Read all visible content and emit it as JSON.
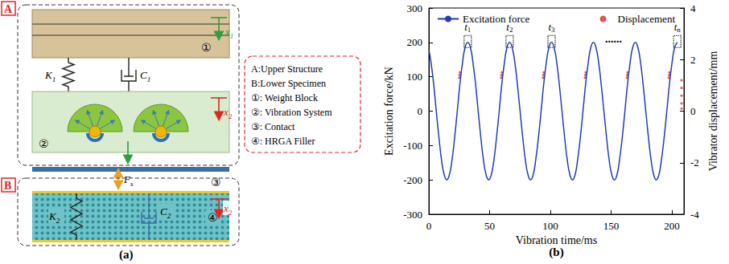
{
  "diagram": {
    "panel_label": "(a)",
    "group_labels": [
      "A",
      "B"
    ],
    "key": [
      "A:Upper Structure",
      "B:Lower Specimen",
      "①: Weight Block",
      "②: Vibration System",
      "③: Contact",
      "④: HRGA  Filler"
    ],
    "part_labels": [
      "①",
      "②",
      "③",
      "④"
    ],
    "upper_displacement": "x1",
    "lower_displacement": "x2",
    "spring_labels": [
      "K1",
      "K2"
    ],
    "damper_labels": [
      "C1",
      "C2"
    ],
    "force_label": "Fs"
  },
  "chart_data": {
    "type": "line",
    "panel_label": "(b)",
    "x_label": "Vibration time/ms",
    "y_label": "Excitation force/kN",
    "y2_label": "Vibrator displacement/mm",
    "xlim": [
      0,
      210
    ],
    "xticks": [
      0,
      50,
      100,
      150,
      200
    ],
    "ylim": [
      -300,
      300
    ],
    "yticks": [
      -300,
      -200,
      -100,
      0,
      100,
      200,
      300
    ],
    "y2lim": [
      -4,
      4
    ],
    "y2ticks": [
      -4,
      -2,
      0,
      2,
      4
    ],
    "grid": false,
    "legend": "top",
    "series": [
      {
        "name": "Excitation force",
        "type": "line",
        "color": "#1f3cb4",
        "line_style": "solid",
        "x": [
          0,
          1.8,
          4.0,
          6.1,
          8.3,
          10.4,
          12.6,
          14.8,
          16.9,
          19.1,
          21.2,
          23.4,
          25.5,
          27.7,
          29.8,
          32.0,
          34.2,
          36.3,
          38.5,
          40.6,
          42.8,
          44.9,
          47.1,
          49.2,
          51.4,
          53.6,
          55.7,
          57.9,
          60.0,
          62.2,
          64.3,
          66.5,
          68.6,
          70.8,
          72.9,
          75.1,
          77.3,
          79.4,
          81.6,
          83.7,
          85.9,
          88.0,
          90.2,
          92.4,
          94.5,
          96.7,
          98.8,
          101.0,
          103.1,
          105.3,
          107.4,
          109.6,
          111.8,
          113.9,
          116.1,
          118.2,
          120.4,
          122.5,
          124.7,
          126.9,
          129.0,
          131.2,
          133.3,
          135.5,
          137.6,
          139.8,
          141.9,
          144.1,
          146.3,
          148.4,
          150.6,
          152.7,
          154.9,
          157.0,
          159.2,
          161.4,
          163.5,
          165.7,
          167.8,
          170.0,
          172.1,
          174.3,
          176.4,
          178.6,
          180.8,
          182.9,
          185.1,
          187.2,
          189.4,
          191.5,
          193.7,
          195.9,
          198.0,
          200.2,
          202.3,
          204.5
        ],
        "values": [
          180,
          141,
          77,
          0,
          -77,
          -141,
          -185,
          -200,
          -185,
          -141,
          -77,
          0,
          77,
          141,
          185,
          200,
          185,
          141,
          77,
          0,
          -77,
          -141,
          -185,
          -200,
          -185,
          -141,
          -77,
          0,
          77,
          141,
          185,
          200,
          185,
          141,
          77,
          0,
          -77,
          -141,
          -185,
          -200,
          -185,
          -141,
          -77,
          0,
          77,
          141,
          185,
          200,
          185,
          141,
          77,
          0,
          -77,
          -141,
          -185,
          -200,
          -185,
          -141,
          -77,
          0,
          77,
          141,
          185,
          200,
          185,
          141,
          77,
          0,
          -77,
          -141,
          -185,
          -200,
          -185,
          -141,
          -77,
          0,
          77,
          141,
          185,
          200,
          185,
          141,
          77,
          0,
          -77,
          -141,
          -185,
          -200,
          -185,
          -141,
          -77,
          0,
          77,
          141,
          185,
          200
        ]
      },
      {
        "name": "Displacement",
        "type": "scatter",
        "axis": "y2",
        "color": "#e02626",
        "marker": "circle",
        "x": [
          25,
          25.3,
          25.6,
          59.5,
          59.8,
          60.1,
          94,
          94.3,
          94.6,
          128.5,
          128.8,
          129.1,
          163,
          163.3,
          163.6,
          197.5,
          197.8,
          198.1,
          208,
          208,
          208,
          208,
          208
        ],
        "values": [
          1.3,
          1.4,
          1.5,
          1.3,
          1.4,
          1.5,
          1.3,
          1.4,
          1.5,
          1.3,
          1.4,
          1.5,
          1.3,
          1.4,
          1.5,
          1.3,
          1.4,
          1.5,
          1.2,
          0.9,
          0.6,
          0.3,
          0.1
        ]
      }
    ],
    "peak_marks": [
      {
        "label": "t1",
        "x": 32,
        "y": 200
      },
      {
        "label": "t2",
        "x": 66.5,
        "y": 200
      },
      {
        "label": "t3",
        "x": 101,
        "y": 200
      },
      {
        "label": "tn",
        "x": 204.5,
        "y": 200
      }
    ],
    "annotations": [
      {
        "label": "......",
        "x": 152,
        "y": 210
      }
    ]
  }
}
